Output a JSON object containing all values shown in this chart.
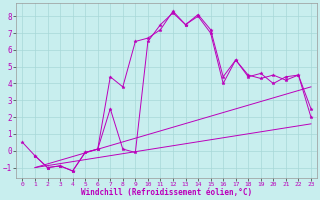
{
  "title": "",
  "xlabel": "Windchill (Refroidissement éolien,°C)",
  "background_color": "#c8eeee",
  "grid_color": "#a8d8d8",
  "line_color": "#bb00bb",
  "xlim": [
    -0.5,
    23.5
  ],
  "ylim": [
    -1.6,
    8.8
  ],
  "xticks": [
    0,
    1,
    2,
    3,
    4,
    5,
    6,
    7,
    8,
    9,
    10,
    11,
    12,
    13,
    14,
    15,
    16,
    17,
    18,
    19,
    20,
    21,
    22,
    23
  ],
  "yticks": [
    -1,
    0,
    1,
    2,
    3,
    4,
    5,
    6,
    7,
    8
  ],
  "series": {
    "line1": {
      "x": [
        0,
        1,
        2,
        3,
        4,
        5,
        6,
        7,
        8,
        9,
        10,
        11,
        12,
        13,
        14,
        15,
        16,
        17,
        18,
        19,
        20,
        21,
        22,
        23
      ],
      "y": [
        0.5,
        -0.3,
        -1.0,
        -0.9,
        -1.2,
        -0.1,
        0.1,
        4.4,
        3.8,
        6.5,
        6.7,
        7.2,
        8.3,
        7.5,
        8.1,
        7.2,
        4.4,
        5.4,
        4.4,
        4.6,
        4.0,
        4.4,
        4.5,
        2.0
      ]
    },
    "line2": {
      "x": [
        1,
        2,
        3,
        4,
        5,
        6,
        7,
        8,
        9,
        10,
        11,
        12,
        13,
        14,
        15,
        16,
        17,
        18,
        19,
        20,
        21,
        22,
        23
      ],
      "y": [
        -0.3,
        -1.0,
        -0.9,
        -1.2,
        -0.1,
        0.1,
        2.5,
        0.1,
        -0.1,
        6.5,
        7.5,
        8.2,
        7.5,
        8.0,
        7.0,
        4.0,
        5.4,
        4.5,
        4.3,
        4.5,
        4.2,
        4.5,
        2.5
      ]
    },
    "trend1": {
      "x": [
        1,
        23
      ],
      "y": [
        -1.0,
        1.6
      ]
    },
    "trend2": {
      "x": [
        1,
        23
      ],
      "y": [
        -1.0,
        3.8
      ]
    }
  },
  "dpi": 100,
  "figsize": [
    3.2,
    2.0
  ]
}
